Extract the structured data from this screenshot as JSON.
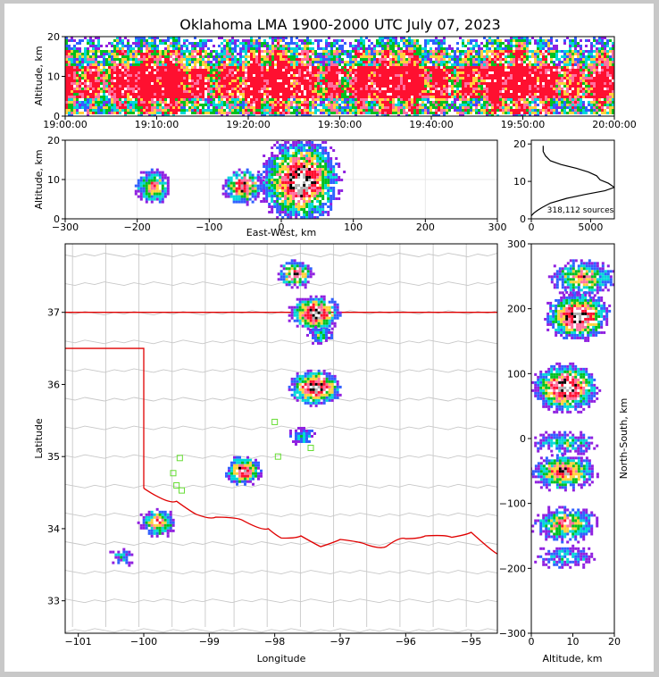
{
  "figure": {
    "title": "Oklahoma LMA 1900-2000 UTC July 07, 2023"
  },
  "chart_data": [
    {
      "panel": "altitude-time",
      "type": "heatmap",
      "xlabel": "",
      "ylabel": "Altitude, km",
      "xlim": [
        "19:00:00",
        "20:00:00"
      ],
      "ylim": [
        0,
        20
      ],
      "x_ticks": [
        "19:00:00",
        "19:10:00",
        "19:20:00",
        "19:30:00",
        "19:40:00",
        "19:50:00",
        "20:00:00"
      ],
      "y_ticks": [
        "0",
        "10",
        "20"
      ],
      "bands": [
        {
          "alt_km": [
            17,
            20
          ],
          "density": "low"
        },
        {
          "alt_km": [
            13,
            17
          ],
          "density": "medium"
        },
        {
          "alt_km": [
            5,
            13
          ],
          "density": "high"
        },
        {
          "alt_km": [
            1,
            5
          ],
          "density": "medium"
        }
      ]
    },
    {
      "panel": "altitude-ew",
      "type": "heatmap",
      "xlabel": "East-West, km",
      "ylabel": "Altitude, km",
      "xlim": [
        -300,
        300
      ],
      "ylim": [
        0,
        20
      ],
      "x_ticks": [
        "−300",
        "−200",
        "−100",
        "0",
        "100",
        "200",
        "300"
      ],
      "y_ticks": [
        "0",
        "10",
        "20"
      ],
      "cells": [
        {
          "ew_km": -180,
          "alt_km": 8.5,
          "peak": 0.7
        },
        {
          "ew_km": -55,
          "alt_km": 8.5,
          "peak": 0.85
        },
        {
          "ew_km": 25,
          "alt_km": 10,
          "peak": 1.0
        }
      ]
    },
    {
      "panel": "source-histogram",
      "type": "line",
      "xlabel": "",
      "ylabel": "",
      "xlim": [
        0,
        7000
      ],
      "ylim": [
        0,
        21
      ],
      "x_ticks": [
        "0",
        "5000"
      ],
      "y_ticks": [
        "0",
        "10",
        "20"
      ],
      "annotation": "318,112 sources",
      "x": [
        0,
        200,
        500,
        900,
        1600,
        3000,
        4500,
        6200,
        7000,
        6500,
        5800,
        5500,
        4800,
        3800,
        2500,
        1600,
        1200,
        1000,
        1000
      ],
      "y": [
        0.8,
        1.5,
        2.2,
        3,
        4.2,
        5.5,
        6.5,
        7.5,
        8.4,
        9.5,
        10.4,
        11.5,
        12.5,
        13.5,
        14.5,
        15.5,
        16.8,
        18,
        19.5
      ]
    },
    {
      "panel": "plan-view",
      "type": "heatmap",
      "xlabel": "Longitude",
      "ylabel": "Latitude",
      "xlim": [
        -101.2,
        -94.6
      ],
      "ylim": [
        32.55,
        37.95
      ],
      "x_ticks": [
        "−101",
        "−100",
        "−99",
        "−98",
        "−97",
        "−96",
        "−95"
      ],
      "y_ticks": [
        "33",
        "34",
        "35",
        "36",
        "37"
      ],
      "cells": [
        {
          "lon": -97.7,
          "lat": 37.55,
          "peak": 0.8
        },
        {
          "lon": -97.4,
          "lat": 37.0,
          "peak": 1.0
        },
        {
          "lon": -97.3,
          "lat": 36.7,
          "peak": 0.5
        },
        {
          "lon": -97.4,
          "lat": 35.97,
          "peak": 1.0
        },
        {
          "lon": -97.6,
          "lat": 35.3,
          "peak": 0.45
        },
        {
          "lon": -98.5,
          "lat": 34.82,
          "peak": 0.9
        },
        {
          "lon": -99.8,
          "lat": 34.1,
          "peak": 0.75
        },
        {
          "lon": -100.35,
          "lat": 33.62,
          "peak": 0.35
        }
      ],
      "stations": [
        {
          "lon": -99.45,
          "lat": 34.98
        },
        {
          "lon": -99.55,
          "lat": 34.77
        },
        {
          "lon": -99.5,
          "lat": 34.6
        },
        {
          "lon": -99.42,
          "lat": 34.53
        },
        {
          "lon": -98.0,
          "lat": 35.48
        },
        {
          "lon": -97.95,
          "lat": 35.0
        },
        {
          "lon": -97.45,
          "lat": 35.12
        }
      ],
      "colors": {
        "border": "#e00000",
        "county": "#c8c8c8",
        "station": "#66dd33"
      }
    },
    {
      "panel": "altitude-ns",
      "type": "heatmap",
      "xlabel": "Altitude, km",
      "ylabel": "North-South, km",
      "xlim": [
        0,
        20
      ],
      "ylim": [
        -300,
        300
      ],
      "x_ticks": [
        "0",
        "10",
        "20"
      ],
      "y_ticks": [
        "−300",
        "−200",
        "−100",
        "0",
        "100",
        "200",
        "300"
      ],
      "cells": [
        {
          "alt_km": 12,
          "ns_km": 250,
          "peak": 0.7
        },
        {
          "alt_km": 11,
          "ns_km": 190,
          "peak": 1.0
        },
        {
          "alt_km": 8,
          "ns_km": 80,
          "peak": 1.0
        },
        {
          "alt_km": 8,
          "ns_km": -5,
          "peak": 0.45
        },
        {
          "alt_km": 7.5,
          "ns_km": -50,
          "peak": 0.85
        },
        {
          "alt_km": 8,
          "ns_km": -130,
          "peak": 0.7
        },
        {
          "alt_km": 8,
          "ns_km": -180,
          "peak": 0.35
        }
      ]
    }
  ]
}
